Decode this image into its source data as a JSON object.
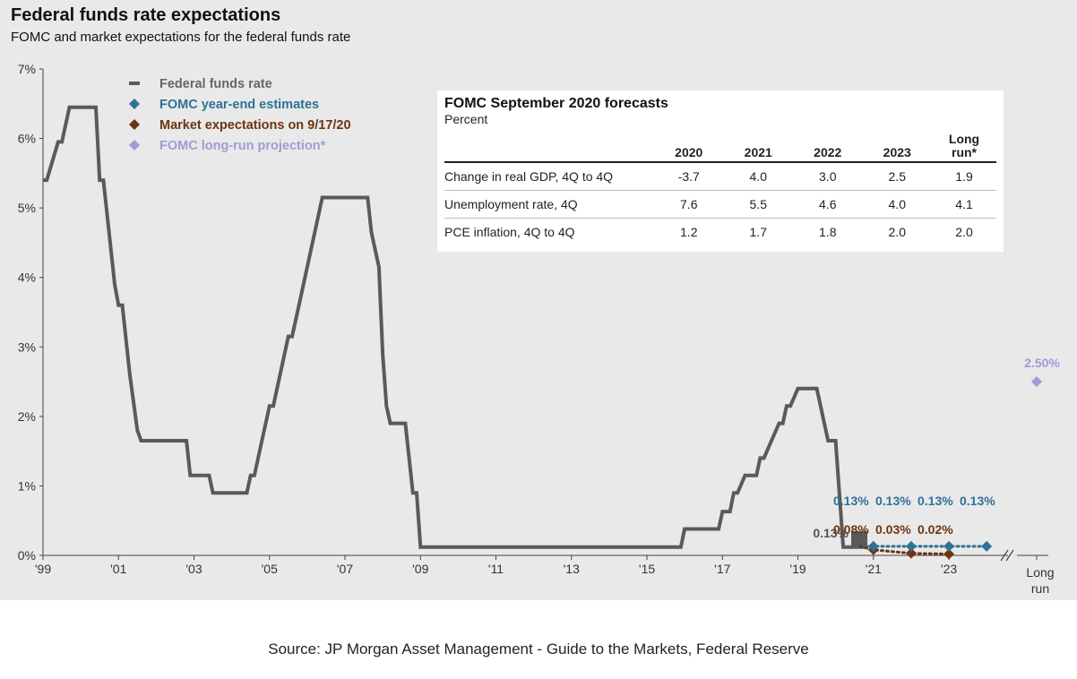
{
  "title": "Federal funds rate expectations",
  "subtitle": "FOMC and market expectations for the federal funds rate",
  "source": "Source:  JP Morgan Asset Management - Guide to the Markets, Federal Reserve",
  "colors": {
    "fed_funds": "#5a5a5a",
    "fomc": "#2e7296",
    "market": "#6e3510",
    "long_run": "#a39ad6"
  },
  "chart_data": {
    "type": "line",
    "ylim": [
      0,
      7
    ],
    "xlim": [
      1999,
      2024.4
    ],
    "y_ticks": [
      {
        "v": 0,
        "label": "0%"
      },
      {
        "v": 1,
        "label": "1%"
      },
      {
        "v": 2,
        "label": "2%"
      },
      {
        "v": 3,
        "label": "3%"
      },
      {
        "v": 4,
        "label": "4%"
      },
      {
        "v": 5,
        "label": "5%"
      },
      {
        "v": 6,
        "label": "6%"
      },
      {
        "v": 7,
        "label": "7%"
      }
    ],
    "x_ticks": [
      {
        "v": 1999,
        "label": "'99"
      },
      {
        "v": 2001,
        "label": "'01"
      },
      {
        "v": 2003,
        "label": "'03"
      },
      {
        "v": 2005,
        "label": "'05"
      },
      {
        "v": 2007,
        "label": "'07"
      },
      {
        "v": 2009,
        "label": "'09"
      },
      {
        "v": 2011,
        "label": "'11"
      },
      {
        "v": 2013,
        "label": "'13"
      },
      {
        "v": 2015,
        "label": "'15"
      },
      {
        "v": 2017,
        "label": "'17"
      },
      {
        "v": 2019,
        "label": "'19"
      },
      {
        "v": 2021,
        "label": "'21"
      },
      {
        "v": 2023,
        "label": "'23"
      }
    ],
    "long_run_tick": [
      "Long",
      "run"
    ],
    "legend": [
      {
        "name": "Federal funds rate",
        "color_key": "fed_funds",
        "marker": "dash"
      },
      {
        "name": "FOMC year-end estimates",
        "color_key": "fomc",
        "marker": "diamond"
      },
      {
        "name": "Market expectations on 9/17/20",
        "color_key": "market",
        "marker": "diamond"
      },
      {
        "name": "FOMC long-run projection*",
        "color_key": "long_run",
        "marker": "diamond"
      }
    ],
    "series": [
      {
        "name": "Federal funds rate",
        "points": [
          [
            1999.0,
            5.4
          ],
          [
            1999.1,
            5.4
          ],
          [
            1999.4,
            5.95
          ],
          [
            1999.5,
            5.95
          ],
          [
            1999.7,
            6.45
          ],
          [
            2000.4,
            6.45
          ],
          [
            2000.5,
            5.4
          ],
          [
            2000.6,
            5.4
          ],
          [
            2000.9,
            3.9
          ],
          [
            2001.0,
            3.6
          ],
          [
            2001.1,
            3.6
          ],
          [
            2001.3,
            2.6
          ],
          [
            2001.5,
            1.8
          ],
          [
            2001.6,
            1.65
          ],
          [
            2002.8,
            1.65
          ],
          [
            2002.9,
            1.15
          ],
          [
            2003.4,
            1.15
          ],
          [
            2003.5,
            0.9
          ],
          [
            2004.4,
            0.9
          ],
          [
            2004.5,
            1.15
          ],
          [
            2004.6,
            1.15
          ],
          [
            2004.8,
            1.65
          ],
          [
            2005.0,
            2.15
          ],
          [
            2005.1,
            2.15
          ],
          [
            2005.3,
            2.65
          ],
          [
            2005.5,
            3.15
          ],
          [
            2005.6,
            3.15
          ],
          [
            2005.8,
            3.65
          ],
          [
            2006.0,
            4.15
          ],
          [
            2006.1,
            4.4
          ],
          [
            2006.2,
            4.65
          ],
          [
            2006.4,
            5.15
          ],
          [
            2007.6,
            5.15
          ],
          [
            2007.7,
            4.65
          ],
          [
            2007.8,
            4.4
          ],
          [
            2007.9,
            4.15
          ],
          [
            2008.0,
            2.9
          ],
          [
            2008.1,
            2.15
          ],
          [
            2008.2,
            1.9
          ],
          [
            2008.6,
            1.9
          ],
          [
            2008.8,
            0.9
          ],
          [
            2008.9,
            0.9
          ],
          [
            2009.0,
            0.12
          ],
          [
            2015.9,
            0.12
          ],
          [
            2016.0,
            0.38
          ],
          [
            2016.9,
            0.38
          ],
          [
            2017.0,
            0.63
          ],
          [
            2017.2,
            0.63
          ],
          [
            2017.3,
            0.9
          ],
          [
            2017.4,
            0.9
          ],
          [
            2017.6,
            1.15
          ],
          [
            2017.9,
            1.15
          ],
          [
            2018.0,
            1.4
          ],
          [
            2018.1,
            1.4
          ],
          [
            2018.3,
            1.65
          ],
          [
            2018.5,
            1.9
          ],
          [
            2018.6,
            1.9
          ],
          [
            2018.7,
            2.15
          ],
          [
            2018.8,
            2.15
          ],
          [
            2019.0,
            2.4
          ],
          [
            2019.5,
            2.4
          ],
          [
            2019.6,
            2.15
          ],
          [
            2019.8,
            1.65
          ],
          [
            2020.0,
            1.65
          ],
          [
            2020.2,
            0.12
          ],
          [
            2020.8,
            0.12
          ]
        ]
      }
    ],
    "current_rate": {
      "x": 2020.65,
      "y": 0.13,
      "label": "0.13%"
    },
    "fomc_estimates": [
      {
        "x": 2021.0,
        "y": 0.13,
        "label": "0.13%"
      },
      {
        "x": 2022.0,
        "y": 0.13,
        "label": "0.13%"
      },
      {
        "x": 2023.0,
        "y": 0.13,
        "label": "0.13%"
      },
      {
        "x": 2024.0,
        "y": 0.13,
        "label": "0.13%"
      }
    ],
    "market_expectations": [
      {
        "x": 2021.0,
        "y": 0.08,
        "label": "0.08%"
      },
      {
        "x": 2022.0,
        "y": 0.03,
        "label": "0.03%"
      },
      {
        "x": 2023.0,
        "y": 0.02,
        "label": "0.02%"
      }
    ],
    "long_run": {
      "y": 2.5,
      "label": "2.50%"
    }
  },
  "forecast_table": {
    "title": "FOMC September 2020 forecasts",
    "unit": "Percent",
    "columns": [
      "2020",
      "2021",
      "2022",
      "2023",
      "Long run*"
    ],
    "rows": [
      {
        "label": "Change in real GDP, 4Q to 4Q",
        "values": [
          "-3.7",
          "4.0",
          "3.0",
          "2.5",
          "1.9"
        ]
      },
      {
        "label": "Unemployment rate, 4Q",
        "values": [
          "7.6",
          "5.5",
          "4.6",
          "4.0",
          "4.1"
        ]
      },
      {
        "label": "PCE inflation, 4Q to 4Q",
        "values": [
          "1.2",
          "1.7",
          "1.8",
          "2.0",
          "2.0"
        ]
      }
    ]
  }
}
